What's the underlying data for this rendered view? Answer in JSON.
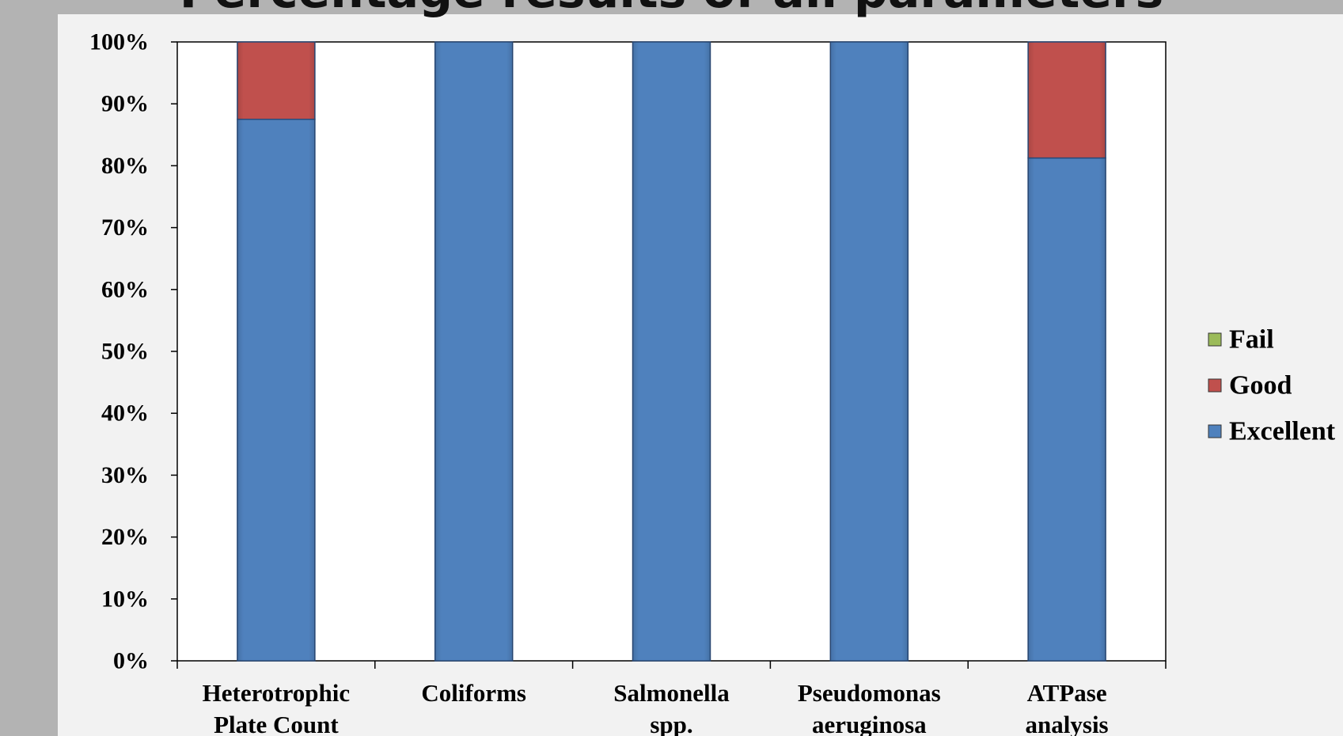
{
  "chart_data": {
    "type": "bar",
    "stacked": true,
    "title": "Percentage results of all parameters",
    "categories": [
      [
        "Heterotrophic",
        "Plate Count"
      ],
      [
        "Coliforms"
      ],
      [
        "Salmonella",
        "spp."
      ],
      [
        "Pseudomonas",
        "aeruginosa"
      ],
      [
        "ATPase",
        "analysis"
      ]
    ],
    "series": [
      {
        "name": "Excellent",
        "color": "#4f81bd",
        "values": [
          87.5,
          100,
          100,
          100,
          81.25
        ]
      },
      {
        "name": "Good",
        "color": "#c0504d",
        "values": [
          12.5,
          0,
          0,
          0,
          18.75
        ]
      },
      {
        "name": "Fail",
        "color": "#9bbb59",
        "values": [
          0,
          0,
          0,
          0,
          0
        ]
      }
    ],
    "y_ticks": [
      "0%",
      "10%",
      "20%",
      "30%",
      "40%",
      "50%",
      "60%",
      "70%",
      "80%",
      "90%",
      "100%"
    ],
    "ylim": [
      0,
      100
    ],
    "legend_position": "right",
    "legend_order": [
      "Fail",
      "Good",
      "Excellent"
    ],
    "grid": false
  }
}
